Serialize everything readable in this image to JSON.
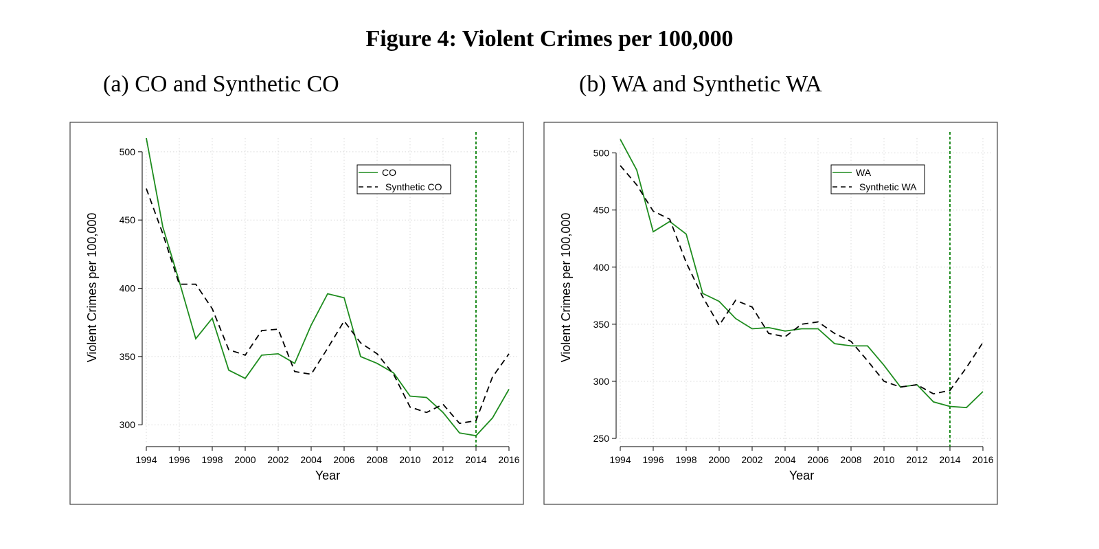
{
  "figure": {
    "title": "Figure 4: Violent Crimes per 100,000"
  },
  "chart_data": [
    {
      "type": "line",
      "panel_label": "(a)",
      "title": "CO and Synthetic CO",
      "xlabel": "Year",
      "ylabel": "Violent Crimes per 100,000",
      "xlim": [
        1994,
        2016
      ],
      "ylim": [
        285,
        510
      ],
      "xticks": [
        1994,
        1996,
        1998,
        2000,
        2002,
        2004,
        2006,
        2008,
        2010,
        2012,
        2014,
        2016
      ],
      "yticks": [
        300,
        350,
        400,
        450,
        500
      ],
      "grid": true,
      "legend_position": "top-right",
      "vline": {
        "x": 2014,
        "color": "#1e8c1e",
        "style": "dashed"
      },
      "x": [
        1994,
        1995,
        1996,
        1997,
        1998,
        1999,
        2000,
        2001,
        2002,
        2003,
        2004,
        2005,
        2006,
        2007,
        2008,
        2009,
        2010,
        2011,
        2012,
        2013,
        2014,
        2015,
        2016
      ],
      "series": [
        {
          "name": "CO",
          "color": "#1e8c1e",
          "style": "solid",
          "values": [
            510,
            445,
            405,
            363,
            378,
            340,
            334,
            351,
            352,
            345,
            373,
            396,
            393,
            350,
            345,
            338,
            321,
            320,
            309,
            294,
            292,
            305,
            326
          ]
        },
        {
          "name": "Synthetic CO",
          "color": "#000000",
          "style": "dashed",
          "values": [
            473,
            440,
            403,
            403,
            385,
            355,
            351,
            369,
            370,
            339,
            337,
            356,
            376,
            360,
            352,
            337,
            313,
            309,
            315,
            301,
            303,
            335,
            352
          ]
        }
      ]
    },
    {
      "type": "line",
      "panel_label": "(b)",
      "title": "WA and Synthetic WA",
      "xlabel": "Year",
      "ylabel": "Violent Crimes per 100,000",
      "xlim": [
        1994,
        2016
      ],
      "ylim": [
        244,
        513
      ],
      "xticks": [
        1994,
        1996,
        1998,
        2000,
        2002,
        2004,
        2006,
        2008,
        2010,
        2012,
        2014,
        2016
      ],
      "yticks": [
        250,
        300,
        350,
        400,
        450,
        500
      ],
      "grid": true,
      "legend_position": "top-right",
      "vline": {
        "x": 2014,
        "color": "#1e8c1e",
        "style": "dashed"
      },
      "x": [
        1994,
        1995,
        1996,
        1997,
        1998,
        1999,
        2000,
        2001,
        2002,
        2003,
        2004,
        2005,
        2006,
        2007,
        2008,
        2009,
        2010,
        2011,
        2012,
        2013,
        2014,
        2015,
        2016
      ],
      "series": [
        {
          "name": "WA",
          "color": "#1e8c1e",
          "style": "solid",
          "values": [
            512,
            485,
            431,
            440,
            429,
            377,
            370,
            355,
            346,
            347,
            344,
            346,
            346,
            333,
            331,
            331,
            314,
            295,
            297,
            282,
            278,
            277,
            291
          ]
        },
        {
          "name": "Synthetic WA",
          "color": "#000000",
          "style": "dashed",
          "values": [
            489,
            472,
            449,
            442,
            404,
            374,
            349,
            371,
            365,
            342,
            339,
            350,
            352,
            342,
            335,
            318,
            300,
            295,
            297,
            289,
            292,
            312,
            334
          ]
        }
      ]
    }
  ]
}
